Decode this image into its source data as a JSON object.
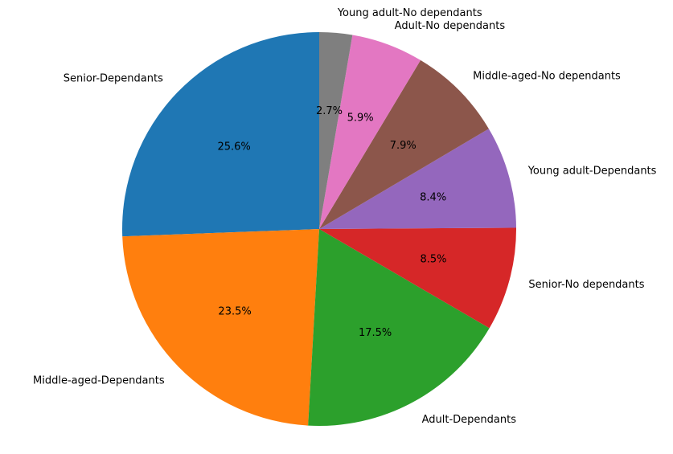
{
  "chart_data": {
    "type": "pie",
    "title": "",
    "start_angle_deg": 90,
    "direction": "counterclockwise",
    "categories": [
      "Senior-Dependants",
      "Middle-aged-Dependants",
      "Adult-Dependants",
      "Senior-No dependants",
      "Young adult-Dependants",
      "Middle-aged-No dependants",
      "Adult-No dependants",
      "Young adult-No dependants"
    ],
    "values": [
      25.6,
      23.5,
      17.5,
      8.5,
      8.4,
      7.9,
      5.9,
      2.7
    ],
    "percent_labels": [
      "25.6%",
      "23.5%",
      "17.5%",
      "8.5%",
      "8.4%",
      "7.9%",
      "5.9%",
      "2.7%"
    ],
    "colors": [
      "#1f77b4",
      "#ff7f0e",
      "#2ca02c",
      "#d62728",
      "#9467bd",
      "#8c564b",
      "#e377c2",
      "#7f7f7f"
    ],
    "legend": "none"
  }
}
